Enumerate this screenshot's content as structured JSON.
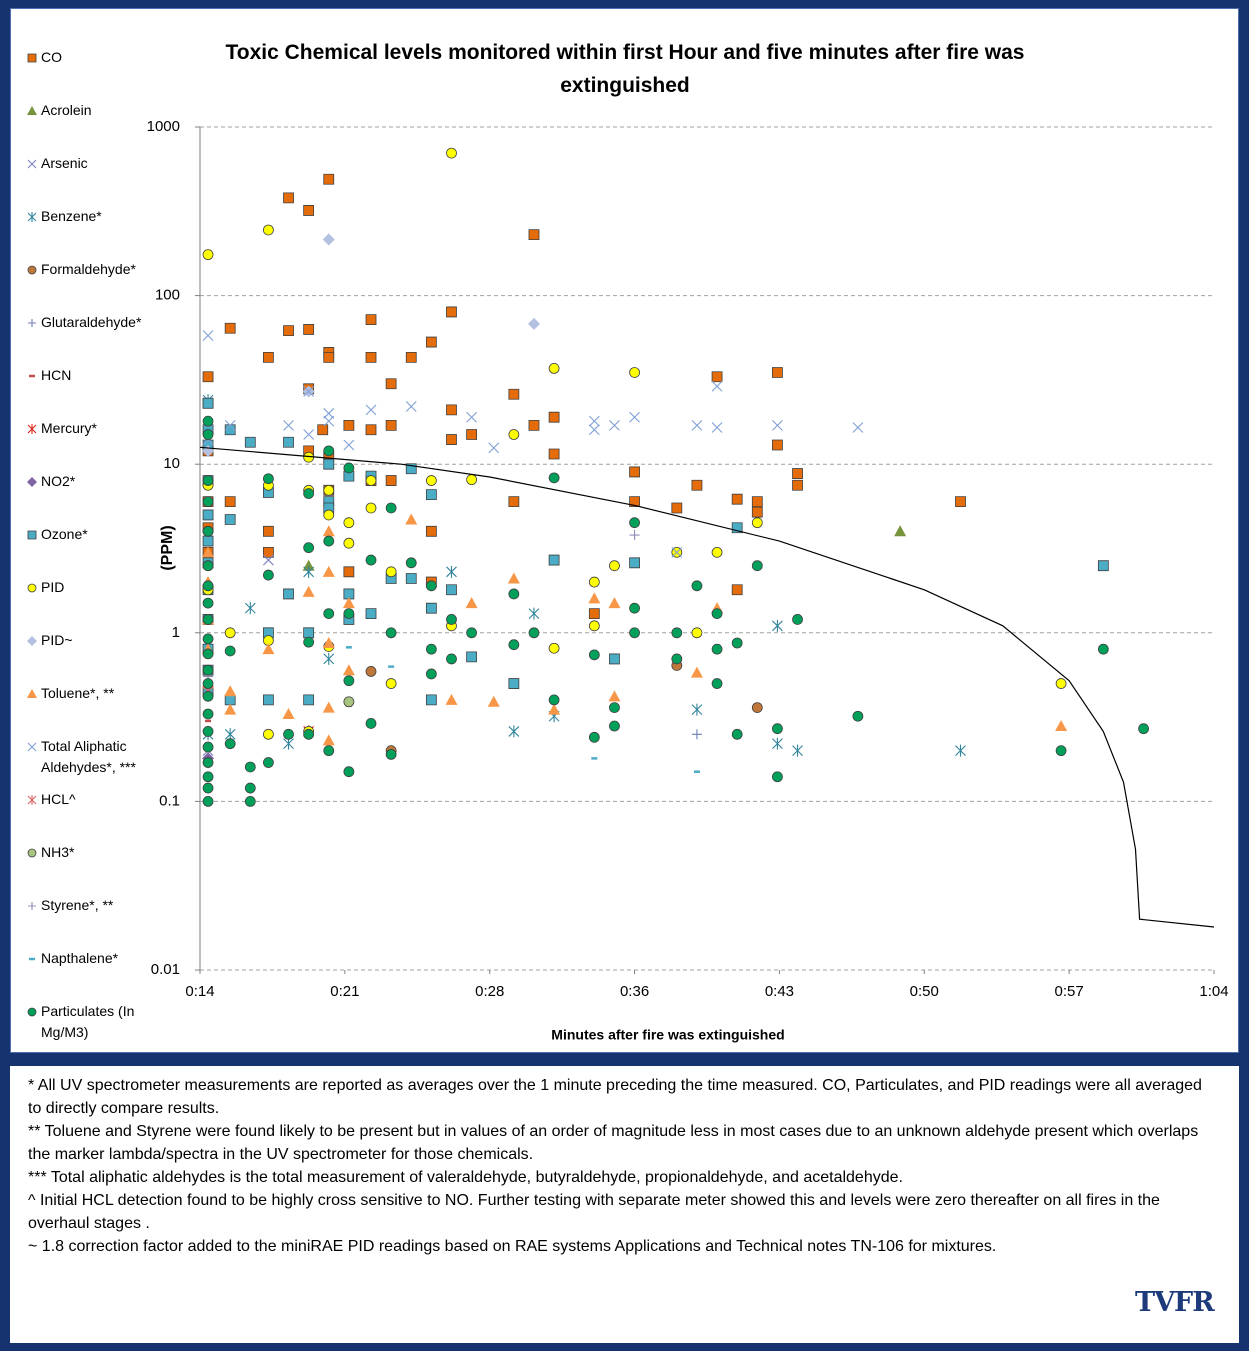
{
  "chart_data": {
    "type": "scatter",
    "title": "Toxic Chemical levels monitored within first Hour and five minutes after fire was extinguished",
    "x_label": "Minutes after fire was extinguished",
    "y_label": "(PPM)",
    "log_y": true,
    "grid": true,
    "legend": "left",
    "xlim": [
      14.4,
      64.8
    ],
    "xticks": [
      {
        "value": 14.4,
        "label": "0:14"
      },
      {
        "value": 21.6,
        "label": "0:21"
      },
      {
        "value": 28.8,
        "label": "0:28"
      },
      {
        "value": 36,
        "label": "0:36"
      },
      {
        "value": 43.2,
        "label": "0:43"
      },
      {
        "value": 50.4,
        "label": "0:50"
      },
      {
        "value": 57.6,
        "label": "0:57"
      },
      {
        "value": 64.8,
        "label": "1:04"
      }
    ],
    "ylim": [
      0.01,
      1000
    ],
    "yticks": [
      1000,
      100,
      10,
      1,
      0.1,
      0.01
    ],
    "series": [
      {
        "name": "CO",
        "color": "#e46c0a",
        "marker": "square",
        "x": [
          14.8,
          14.8,
          14.8,
          14.8,
          14.8,
          14.8,
          15.9,
          15.9,
          17.8,
          17.8,
          17.8,
          18.8,
          18.8,
          19.8,
          19.8,
          19.8,
          19.8,
          20.5,
          20.8,
          20.8,
          20.8,
          20.8,
          20.8,
          21.8,
          21.8,
          22.9,
          22.9,
          22.9,
          22.9,
          23.9,
          23.9,
          23.9,
          24.9,
          25.9,
          25.9,
          25.9,
          26.9,
          26.9,
          26.9,
          27.9,
          30.0,
          30.0,
          31.0,
          31.0,
          32.0,
          32.0,
          34.0,
          36.0,
          36.0,
          38.1,
          39.1,
          40.1,
          41.1,
          41.1,
          42.1,
          42.1,
          43.1,
          43.1,
          44.1,
          44.1,
          52.2
        ],
        "values": [
          33,
          23,
          12,
          6,
          4.2,
          3,
          64,
          6,
          43,
          4,
          3,
          380,
          62,
          320,
          63,
          28,
          12,
          16,
          490,
          46,
          43,
          11,
          7,
          17,
          2.3,
          72,
          43,
          16,
          8,
          30,
          17,
          8,
          43,
          53,
          4,
          2,
          80,
          21,
          14,
          15,
          26,
          6,
          230,
          17,
          19,
          11.5,
          1.3,
          9,
          6,
          5.5,
          7.5,
          33,
          6.2,
          1.8,
          6,
          5.2,
          35,
          13,
          8.8,
          7.5,
          6
        ]
      },
      {
        "name": "Acrolein",
        "color": "#77933c",
        "marker": "triangle",
        "x": [
          19.8,
          49.2
        ],
        "values": [
          2.5,
          4
        ]
      },
      {
        "name": "Arsenic",
        "color": "#7f7fbf",
        "marker": "x",
        "x": [
          14.8,
          17.8
        ],
        "values": [
          0.2,
          2.7
        ]
      },
      {
        "name": "Benzene*",
        "color": "#31859c",
        "marker": "asterisk",
        "x": [
          14.8,
          14.8,
          15.9,
          16.9,
          18.8,
          19.8,
          20.8,
          23.9,
          26.9,
          30.0,
          31.0,
          32.0,
          39.1,
          43.1,
          43.1,
          44.1,
          52.2
        ],
        "values": [
          24,
          0.25,
          0.25,
          1.4,
          0.22,
          2.3,
          0.7,
          2.2,
          2.3,
          0.26,
          1.3,
          0.32,
          0.35,
          1.1,
          0.22,
          0.2,
          0.2
        ]
      },
      {
        "name": "Formaldehyde*",
        "color": "#c0773a",
        "marker": "circle",
        "x": [
          22.9,
          23.9,
          38.1,
          42.1
        ],
        "values": [
          0.59,
          0.2,
          0.64,
          0.36
        ]
      },
      {
        "name": "Glutaraldehyde*",
        "color": "#6f7fb8",
        "marker": "plus",
        "x": [
          14.8,
          39.1
        ],
        "values": [
          0.18,
          0.25
        ]
      },
      {
        "name": "HCN",
        "color": "#c0504d",
        "marker": "dash",
        "x": [
          14.8,
          21.8
        ],
        "values": [
          0.3,
          0.37
        ]
      },
      {
        "name": "Mercury*",
        "color": "#e0201b",
        "marker": "asterisk",
        "x": [
          19.8
        ],
        "values": [
          0.26
        ]
      },
      {
        "name": "NO2*",
        "color": "#8064a2",
        "marker": "diamond",
        "x": [
          14.8
        ],
        "values": [
          0.18
        ]
      },
      {
        "name": "Ozone*",
        "color": "#4bacc6",
        "marker": "square",
        "x": [
          14.8,
          14.8,
          14.8,
          14.8,
          14.8,
          14.8,
          14.8,
          14.8,
          14.8,
          14.8,
          14.8,
          14.8,
          15.9,
          15.9,
          15.9,
          16.9,
          17.8,
          17.8,
          17.8,
          18.8,
          18.8,
          19.8,
          19.8,
          20.8,
          20.8,
          20.8,
          21.8,
          21.8,
          21.8,
          22.9,
          22.9,
          23.9,
          24.9,
          24.9,
          25.9,
          25.9,
          25.9,
          26.9,
          27.9,
          30.0,
          32.0,
          35.0,
          36.0,
          41.1,
          59.3
        ],
        "values": [
          23,
          16,
          13,
          8,
          5,
          3.5,
          2.6,
          1.8,
          1.2,
          0.8,
          0.6,
          0.45,
          16,
          4.7,
          0.4,
          13.5,
          6.8,
          1,
          0.4,
          13.5,
          1.7,
          1,
          0.4,
          10,
          6,
          5.5,
          8.5,
          1.7,
          1.2,
          8.5,
          1.3,
          2.1,
          9.4,
          2.1,
          6.6,
          1.4,
          0.4,
          1.8,
          0.72,
          0.5,
          2.7,
          0.7,
          2.6,
          4.2,
          2.5
        ]
      },
      {
        "name": "PID",
        "color": "#ffff00",
        "marker": "circle",
        "x": [
          14.8,
          14.8,
          14.8,
          14.8,
          14.8,
          15.9,
          17.8,
          17.8,
          17.8,
          17.8,
          19.8,
          19.8,
          19.8,
          20.8,
          20.8,
          20.8,
          21.8,
          21.8,
          22.9,
          22.9,
          23.9,
          23.9,
          25.9,
          26.9,
          26.9,
          27.9,
          30.0,
          32.0,
          32.0,
          34.0,
          34.0,
          35.0,
          36.0,
          38.1,
          39.1,
          40.1,
          42.1,
          57.2
        ],
        "values": [
          175,
          7.5,
          4,
          2.5,
          1.8,
          1,
          245,
          7.5,
          0.9,
          0.25,
          11,
          7,
          0.26,
          7,
          5,
          0.83,
          4.5,
          3.4,
          8,
          5.5,
          2.3,
          0.5,
          8,
          700,
          1.1,
          8.1,
          15,
          37,
          0.81,
          2,
          1.1,
          2.5,
          35,
          3,
          1,
          3,
          4.5,
          0.5
        ]
      },
      {
        "name": "PID~",
        "color": "#b4c0e0",
        "marker": "diamond",
        "x": [
          14.8,
          19.8,
          20.8,
          31.0
        ],
        "values": [
          12,
          27,
          215,
          68
        ]
      },
      {
        "name": "Toluene*, **",
        "color": "#f79646",
        "marker": "triangle",
        "x": [
          14.8,
          14.8,
          14.8,
          14.8,
          14.8,
          15.9,
          15.9,
          17.8,
          18.8,
          19.8,
          20.8,
          20.8,
          20.8,
          20.8,
          20.8,
          21.8,
          21.8,
          24.9,
          26.9,
          27.9,
          29.0,
          30.0,
          32.0,
          34.0,
          35.0,
          35.0,
          39.1,
          40.1,
          57.2
        ],
        "values": [
          3,
          2,
          1.2,
          0.8,
          0.5,
          0.45,
          0.35,
          0.8,
          0.33,
          1.75,
          4,
          2.3,
          0.87,
          0.36,
          0.23,
          1.5,
          0.6,
          4.7,
          0.4,
          1.5,
          0.39,
          2.1,
          0.35,
          1.6,
          1.5,
          0.42,
          0.58,
          1.4,
          0.28
        ]
      },
      {
        "name": "Total Aliphatic Aldehydes*, ***",
        "color": "#7f9fd6",
        "marker": "x",
        "x": [
          14.8,
          14.8,
          15.9,
          18.8,
          19.8,
          19.8,
          20.8,
          20.8,
          21.8,
          22.9,
          24.9,
          27.9,
          29.0,
          34.0,
          34.0,
          35.0,
          36.0,
          38.1,
          39.1,
          40.1,
          40.1,
          43.1,
          47.1
        ],
        "values": [
          58,
          14,
          17,
          17,
          15,
          27,
          20,
          18,
          13,
          21,
          22,
          19,
          12.5,
          18,
          16,
          17,
          19,
          3,
          17,
          29,
          16.5,
          17,
          16.5
        ]
      },
      {
        "name": "HCL^",
        "color": "#e06060",
        "marker": "asterisk",
        "x": [
          14.8
        ],
        "values": [
          0.45
        ]
      },
      {
        "name": "NH3*",
        "color": "#a9c47f",
        "marker": "circle",
        "x": [
          21.8
        ],
        "values": [
          0.39
        ]
      },
      {
        "name": "Styrene*, **",
        "color": "#8c8cb8",
        "marker": "plus",
        "x": [
          36.0,
          14.8
        ],
        "values": [
          3.8,
          0.55
        ]
      },
      {
        "name": "Napthalene*",
        "color": "#4bacc6",
        "marker": "dash",
        "x": [
          21.8,
          23.9,
          26.9,
          34.0,
          39.1
        ],
        "values": [
          0.82,
          0.63,
          0.68,
          0.18,
          0.15
        ]
      },
      {
        "name": "Particulates (In Mg/M3)",
        "color": "#00a05a",
        "marker": "circle",
        "x": [
          14.8,
          14.8,
          14.8,
          14.8,
          14.8,
          14.8,
          14.8,
          14.8,
          14.8,
          14.8,
          14.8,
          14.8,
          14.8,
          14.8,
          14.8,
          14.8,
          14.8,
          14.8,
          14.8,
          14.8,
          14.8,
          15.9,
          15.9,
          16.9,
          16.9,
          16.9,
          17.8,
          17.8,
          17.8,
          18.8,
          19.8,
          19.8,
          19.8,
          19.8,
          20.8,
          20.8,
          20.8,
          20.8,
          21.8,
          21.8,
          21.8,
          21.8,
          22.9,
          22.9,
          23.9,
          23.9,
          23.9,
          24.9,
          25.9,
          25.9,
          25.9,
          26.9,
          26.9,
          27.9,
          30.0,
          30.0,
          31.0,
          32.0,
          32.0,
          34.0,
          34.0,
          35.0,
          35.0,
          36.0,
          36.0,
          36.0,
          38.1,
          38.1,
          39.1,
          40.1,
          40.1,
          40.1,
          41.1,
          41.1,
          42.1,
          43.1,
          43.1,
          44.1,
          47.1,
          57.2,
          59.3,
          61.3
        ],
        "values": [
          18,
          15,
          8,
          6,
          4,
          2.5,
          1.9,
          1.5,
          1.2,
          0.92,
          0.75,
          0.6,
          0.5,
          0.42,
          0.33,
          0.26,
          0.21,
          0.17,
          0.14,
          0.12,
          0.1,
          0.78,
          0.22,
          0.16,
          0.12,
          0.1,
          8.2,
          2.2,
          0.17,
          0.25,
          6.7,
          3.2,
          0.88,
          0.25,
          12,
          3.5,
          1.3,
          0.2,
          9.5,
          1.3,
          0.52,
          0.15,
          2.7,
          0.29,
          5.5,
          1,
          0.19,
          2.6,
          1.9,
          0.8,
          0.57,
          1.2,
          0.7,
          1,
          1.7,
          0.85,
          1,
          8.3,
          0.4,
          0.74,
          0.24,
          0.36,
          0.28,
          4.5,
          1.4,
          1,
          1,
          0.7,
          1.9,
          1.3,
          0.8,
          0.5,
          0.87,
          0.25,
          2.5,
          0.27,
          0.14,
          1.2,
          0.32,
          0.2,
          0.8,
          0.27
        ]
      }
    ],
    "trendline": {
      "color": "#000000",
      "x": [
        14.4,
        24.4,
        28.8,
        36,
        43.2,
        50.4,
        54.3,
        57.6,
        59.3,
        60.3,
        60.9,
        61.1,
        64.8
      ],
      "values": [
        12.6,
        10,
        8.4,
        5.7,
        3.5,
        1.8,
        1.1,
        0.52,
        0.26,
        0.13,
        0.052,
        0.02,
        0.018
      ]
    },
    "notes": [
      "* All UV spectrometer measurements are reported as averages over the 1 minute preceding the time measured. CO, Particulates, and PID readings were all averaged to directly compare results.",
      "** Toluene and Styrene were found likely to be present but in values of an order of magnitude less in most cases due to an unknown aldehyde present which overlaps the marker lambda/spectra in the UV spectrometer for those chemicals.",
      "*** Total aliphatic aldehydes is the total measurement of valeraldehyde, butyraldehyde, propionaldehyde, and acetaldehyde.",
      "^ Initial HCL detection found to be highly cross sensitive to NO.  Further testing with separate meter showed this and levels  were zero thereafter on all fires in the overhaul stages .",
      "~ 1.8 correction factor added to the miniRAE PID readings based on RAE systems Applications and Technical notes TN-106 for mixtures."
    ],
    "logo": "TVFR"
  }
}
